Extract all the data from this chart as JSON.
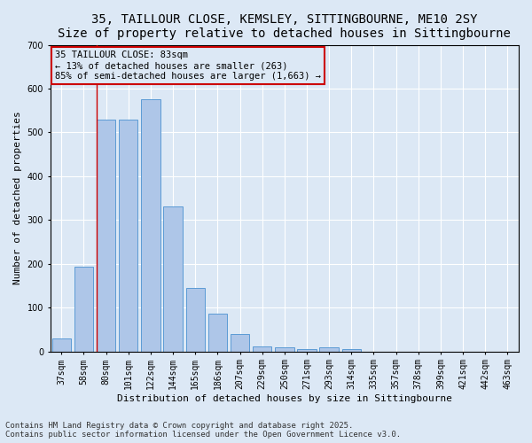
{
  "title1": "35, TAILLOUR CLOSE, KEMSLEY, SITTINGBOURNE, ME10 2SY",
  "title2": "Size of property relative to detached houses in Sittingbourne",
  "xlabel": "Distribution of detached houses by size in Sittingbourne",
  "ylabel": "Number of detached properties",
  "categories": [
    "37sqm",
    "58sqm",
    "80sqm",
    "101sqm",
    "122sqm",
    "144sqm",
    "165sqm",
    "186sqm",
    "207sqm",
    "229sqm",
    "250sqm",
    "271sqm",
    "293sqm",
    "314sqm",
    "335sqm",
    "357sqm",
    "378sqm",
    "399sqm",
    "421sqm",
    "442sqm",
    "463sqm"
  ],
  "values": [
    30,
    193,
    530,
    530,
    575,
    330,
    145,
    87,
    40,
    12,
    9,
    6,
    10,
    5,
    0,
    0,
    0,
    0,
    0,
    0,
    0
  ],
  "bar_color": "#aec6e8",
  "bar_edge_color": "#5b9bd5",
  "vline_color": "#cc0000",
  "vline_x_index": 2,
  "annotation_box_text": "35 TAILLOUR CLOSE: 83sqm\n← 13% of detached houses are smaller (263)\n85% of semi-detached houses are larger (1,663) →",
  "annotation_box_color": "#cc0000",
  "ylim": [
    0,
    700
  ],
  "yticks": [
    0,
    100,
    200,
    300,
    400,
    500,
    600,
    700
  ],
  "background_color": "#dce8f5",
  "grid_color": "#ffffff",
  "footer": "Contains HM Land Registry data © Crown copyright and database right 2025.\nContains public sector information licensed under the Open Government Licence v3.0.",
  "title_fontsize": 10,
  "subtitle_fontsize": 9,
  "axis_label_fontsize": 8,
  "tick_fontsize": 7,
  "annotation_fontsize": 7.5,
  "footer_fontsize": 6.5
}
